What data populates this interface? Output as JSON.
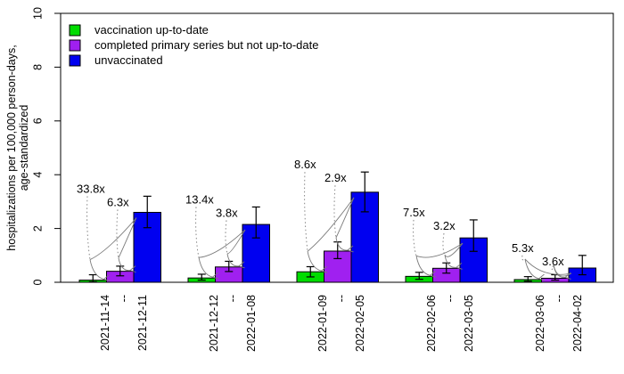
{
  "figure": {
    "background": "#ffffff"
  },
  "chart_data": {
    "type": "bar",
    "title": "",
    "ylabel": "hospitalizations per 100,000 person-days, age-standardized",
    "ylabel_lines": [
      "hospitalizations per 100,000 person-days,",
      "age-standardized"
    ],
    "xlabel": "",
    "ylim": [
      0,
      10
    ],
    "yticks": [
      0,
      2,
      4,
      6,
      8,
      10
    ],
    "grid": false,
    "legend_position": "top-left-inside",
    "categories": [
      {
        "start": "2021-11-14",
        "sep": "--",
        "end": "2021-12-11"
      },
      {
        "start": "2021-12-12",
        "sep": "--",
        "end": "2022-01-08"
      },
      {
        "start": "2022-01-09",
        "sep": "--",
        "end": "2022-02-05"
      },
      {
        "start": "2022-02-06",
        "sep": "--",
        "end": "2022-03-05"
      },
      {
        "start": "2022-03-06",
        "sep": "--",
        "end": "2022-04-02"
      }
    ],
    "series": [
      {
        "name": "vaccination up-to-date",
        "color": "#00DC00",
        "values": [
          0.08,
          0.16,
          0.39,
          0.22,
          0.1
        ],
        "ci_low": [
          0.02,
          0.08,
          0.2,
          0.11,
          0.04
        ],
        "ci_high": [
          0.28,
          0.3,
          0.58,
          0.37,
          0.21
        ]
      },
      {
        "name": "completed primary series but not up-to-date",
        "color": "#A020F0",
        "values": [
          0.41,
          0.57,
          1.16,
          0.52,
          0.15
        ],
        "ci_low": [
          0.24,
          0.4,
          0.88,
          0.34,
          0.08
        ],
        "ci_high": [
          0.6,
          0.78,
          1.5,
          0.72,
          0.28
        ]
      },
      {
        "name": "unvaccinated",
        "color": "#0000F0",
        "values": [
          2.6,
          2.15,
          3.35,
          1.65,
          0.53
        ],
        "ci_low": [
          2.03,
          1.65,
          2.62,
          1.15,
          0.28
        ],
        "ci_high": [
          3.2,
          2.8,
          4.1,
          2.32,
          1.0
        ]
      }
    ],
    "ratio_annotations": [
      {
        "vs_up_to_date": "33.8x",
        "vs_primary_series": "6.3x"
      },
      {
        "vs_up_to_date": "13.4x",
        "vs_primary_series": "3.8x"
      },
      {
        "vs_up_to_date": "8.6x",
        "vs_primary_series": "2.9x"
      },
      {
        "vs_up_to_date": "7.5x",
        "vs_primary_series": "3.2x"
      },
      {
        "vs_up_to_date": "5.3x",
        "vs_primary_series": "3.6x"
      }
    ],
    "leader_line_color": "#7a7a7a",
    "axis_color": "#000000"
  }
}
